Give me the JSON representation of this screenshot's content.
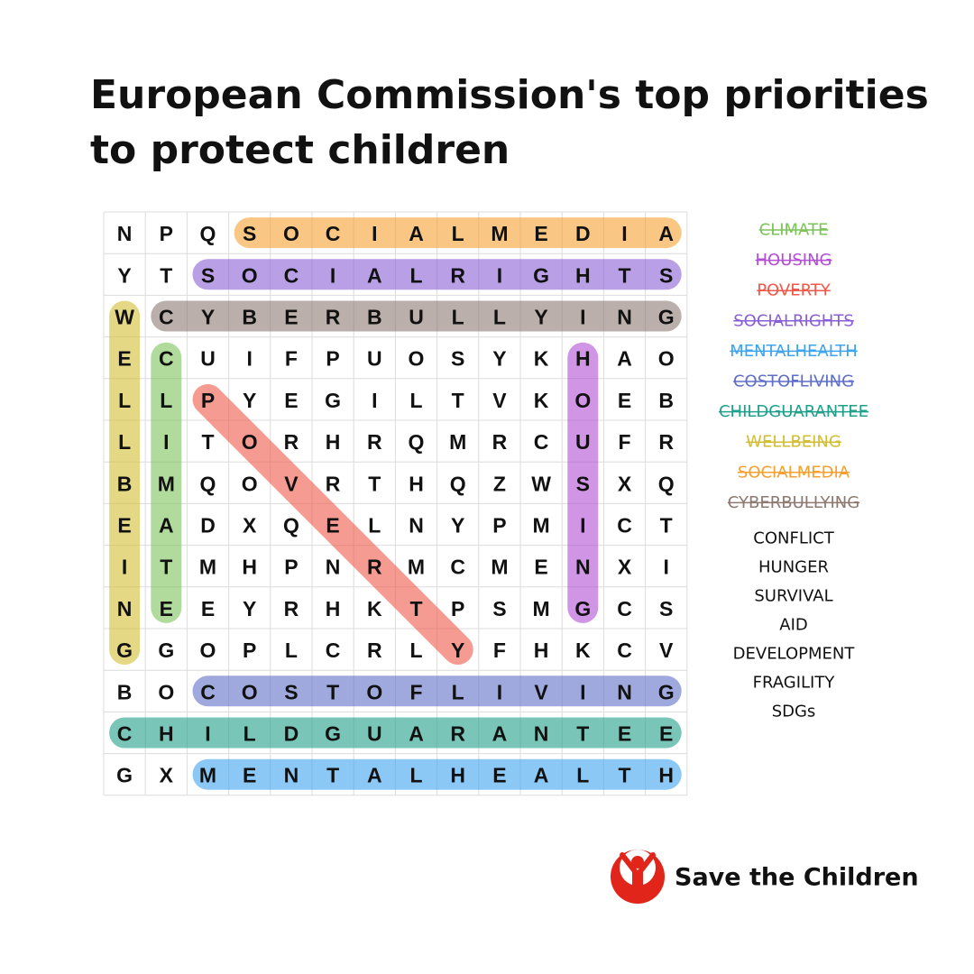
{
  "header": {
    "title_lines": [
      "European Commission's top priorities",
      "to protect children"
    ]
  },
  "grid": {
    "rows": [
      [
        "N",
        "P",
        "Q",
        "S",
        "O",
        "C",
        "I",
        "A",
        "L",
        "M",
        "E",
        "D",
        "I",
        "A"
      ],
      [
        "Y",
        "T",
        "S",
        "O",
        "C",
        "I",
        "A",
        "L",
        "R",
        "I",
        "G",
        "H",
        "T",
        "S"
      ],
      [
        "W",
        "C",
        "Y",
        "B",
        "E",
        "R",
        "B",
        "U",
        "L",
        "L",
        "Y",
        "I",
        "N",
        "G"
      ],
      [
        "E",
        "C",
        "U",
        "I",
        "F",
        "P",
        "U",
        "O",
        "S",
        "Y",
        "K",
        "H",
        "A",
        "O"
      ],
      [
        "L",
        "L",
        "P",
        "Y",
        "E",
        "G",
        "I",
        "L",
        "T",
        "V",
        "K",
        "O",
        "E",
        "B"
      ],
      [
        "L",
        "I",
        "T",
        "O",
        "R",
        "H",
        "R",
        "Q",
        "M",
        "R",
        "C",
        "U",
        "F",
        "R"
      ],
      [
        "B",
        "M",
        "Q",
        "O",
        "V",
        "R",
        "T",
        "H",
        "Q",
        "Z",
        "W",
        "S",
        "X",
        "Q"
      ],
      [
        "E",
        "A",
        "D",
        "X",
        "Q",
        "E",
        "L",
        "N",
        "Y",
        "P",
        "M",
        "I",
        "C",
        "T"
      ],
      [
        "I",
        "T",
        "M",
        "H",
        "P",
        "N",
        "R",
        "M",
        "C",
        "M",
        "E",
        "N",
        "X",
        "I"
      ],
      [
        "N",
        "E",
        "E",
        "Y",
        "R",
        "H",
        "K",
        "T",
        "P",
        "S",
        "M",
        "G",
        "C",
        "S"
      ],
      [
        "G",
        "G",
        "O",
        "P",
        "L",
        "C",
        "R",
        "L",
        "Y",
        "F",
        "H",
        "K",
        "C",
        "V"
      ],
      [
        "B",
        "O",
        "C",
        "O",
        "S",
        "T",
        "O",
        "F",
        "L",
        "I",
        "V",
        "I",
        "N",
        "G"
      ],
      [
        "C",
        "H",
        "I",
        "L",
        "D",
        "G",
        "U",
        "A",
        "R",
        "A",
        "N",
        "T",
        "E",
        "E"
      ],
      [
        "G",
        "X",
        "M",
        "E",
        "N",
        "T",
        "A",
        "L",
        "H",
        "E",
        "A",
        "L",
        "T",
        "H"
      ]
    ]
  },
  "found_words": [
    {
      "word": "CLIMATE",
      "color": "#7cc35a"
    },
    {
      "word": "HOUSING",
      "color": "#b24fd4"
    },
    {
      "word": "POVERTY",
      "color": "#f0584a"
    },
    {
      "word": "SOCIALRIGHTS",
      "color": "#8a5fd6"
    },
    {
      "word": "MENTALHEALTH",
      "color": "#3fa3f0"
    },
    {
      "word": "COSTOFLIVING",
      "color": "#5f6fc8"
    },
    {
      "word": "CHILDGUARANTEE",
      "color": "#1fa08a"
    },
    {
      "word": "WELLBEING",
      "color": "#d2be33"
    },
    {
      "word": "SOCIALMEDIA",
      "color": "#f5a030"
    },
    {
      "word": "CYBERBULLYING",
      "color": "#8c7a72"
    }
  ],
  "other_words": [
    "CONFLICT",
    "HUNGER",
    "SURVIVAL",
    "AID",
    "DEVELOPMENT",
    "FRAGILITY",
    "SDGs"
  ],
  "brand": "Save the Children"
}
